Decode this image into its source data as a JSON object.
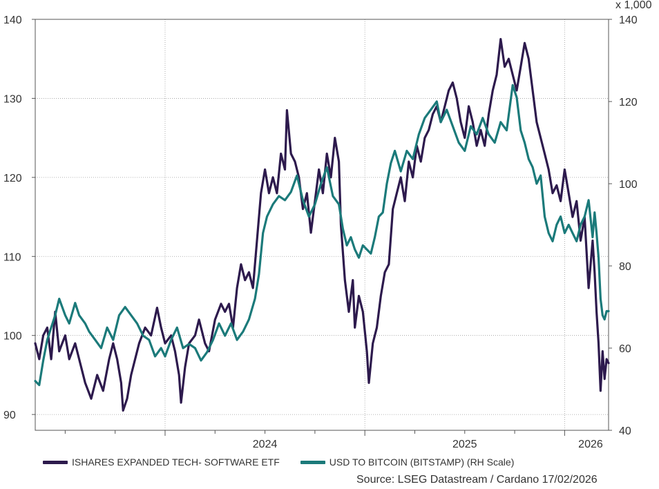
{
  "chart_data": {
    "type": "line",
    "title": "",
    "x_labels": [
      "2024",
      "2025",
      "2026"
    ],
    "x_range": [
      2023.35,
      2026.22
    ],
    "y_left": {
      "ticks": [
        90,
        100,
        110,
        120,
        130,
        140
      ],
      "range": [
        88,
        140
      ]
    },
    "y_right": {
      "ticks": [
        40,
        60,
        80,
        100,
        120,
        140
      ],
      "range": [
        40,
        140
      ],
      "unit_label": "x 1,000"
    },
    "grid": true,
    "legend_position": "bottom",
    "series": [
      {
        "name": "ISHARES EXPANDED TECH- SOFTWARE ETF",
        "axis": "left",
        "color": "#2d1a4d",
        "points": [
          [
            2023.35,
            99
          ],
          [
            2023.37,
            97
          ],
          [
            2023.39,
            100
          ],
          [
            2023.41,
            101
          ],
          [
            2023.43,
            97
          ],
          [
            2023.45,
            103
          ],
          [
            2023.47,
            98
          ],
          [
            2023.5,
            100
          ],
          [
            2023.52,
            97
          ],
          [
            2023.55,
            99
          ],
          [
            2023.57,
            97
          ],
          [
            2023.6,
            94
          ],
          [
            2023.63,
            92
          ],
          [
            2023.66,
            95
          ],
          [
            2023.69,
            93
          ],
          [
            2023.72,
            97
          ],
          [
            2023.74,
            99
          ],
          [
            2023.76,
            97
          ],
          [
            2023.78,
            94
          ],
          [
            2023.79,
            90.5
          ],
          [
            2023.81,
            92
          ],
          [
            2023.83,
            95
          ],
          [
            2023.85,
            97
          ],
          [
            2023.87,
            99
          ],
          [
            2023.9,
            101
          ],
          [
            2023.93,
            100
          ],
          [
            2023.96,
            103.5
          ],
          [
            2023.98,
            101
          ],
          [
            2024.0,
            99
          ],
          [
            2024.03,
            100
          ],
          [
            2024.05,
            98
          ],
          [
            2024.07,
            95
          ],
          [
            2024.08,
            91.5
          ],
          [
            2024.1,
            96
          ],
          [
            2024.12,
            99
          ],
          [
            2024.15,
            100
          ],
          [
            2024.17,
            102
          ],
          [
            2024.2,
            99
          ],
          [
            2024.22,
            98
          ],
          [
            2024.25,
            102
          ],
          [
            2024.28,
            104
          ],
          [
            2024.3,
            103
          ],
          [
            2024.32,
            104
          ],
          [
            2024.34,
            101
          ],
          [
            2024.36,
            106
          ],
          [
            2024.38,
            109
          ],
          [
            2024.4,
            107
          ],
          [
            2024.42,
            108
          ],
          [
            2024.44,
            106
          ],
          [
            2024.46,
            112
          ],
          [
            2024.48,
            118
          ],
          [
            2024.5,
            121
          ],
          [
            2024.52,
            118
          ],
          [
            2024.54,
            120
          ],
          [
            2024.56,
            118
          ],
          [
            2024.58,
            123
          ],
          [
            2024.6,
            121
          ],
          [
            2024.61,
            128.5
          ],
          [
            2024.63,
            123
          ],
          [
            2024.65,
            122
          ],
          [
            2024.67,
            120
          ],
          [
            2024.69,
            116
          ],
          [
            2024.71,
            118
          ],
          [
            2024.73,
            113
          ],
          [
            2024.75,
            117
          ],
          [
            2024.77,
            121
          ],
          [
            2024.79,
            118
          ],
          [
            2024.81,
            123
          ],
          [
            2024.83,
            120
          ],
          [
            2024.85,
            125
          ],
          [
            2024.87,
            122
          ],
          [
            2024.88,
            114
          ],
          [
            2024.9,
            107
          ],
          [
            2024.92,
            103
          ],
          [
            2024.94,
            107
          ],
          [
            2024.95,
            101
          ],
          [
            2024.97,
            105
          ],
          [
            2024.99,
            103
          ],
          [
            2025.01,
            98
          ],
          [
            2025.02,
            94
          ],
          [
            2025.04,
            99
          ],
          [
            2025.06,
            101
          ],
          [
            2025.08,
            105
          ],
          [
            2025.1,
            108
          ],
          [
            2025.12,
            109
          ],
          [
            2025.14,
            116
          ],
          [
            2025.16,
            118
          ],
          [
            2025.18,
            120
          ],
          [
            2025.2,
            117
          ],
          [
            2025.22,
            122
          ],
          [
            2025.24,
            120
          ],
          [
            2025.26,
            124
          ],
          [
            2025.28,
            122
          ],
          [
            2025.3,
            125
          ],
          [
            2025.32,
            126
          ],
          [
            2025.34,
            128
          ],
          [
            2025.36,
            129
          ],
          [
            2025.38,
            127
          ],
          [
            2025.4,
            129
          ],
          [
            2025.42,
            131
          ],
          [
            2025.44,
            132
          ],
          [
            2025.46,
            130
          ],
          [
            2025.48,
            127
          ],
          [
            2025.5,
            125
          ],
          [
            2025.52,
            129
          ],
          [
            2025.54,
            127
          ],
          [
            2025.56,
            124
          ],
          [
            2025.58,
            126
          ],
          [
            2025.6,
            124
          ],
          [
            2025.62,
            128
          ],
          [
            2025.64,
            131
          ],
          [
            2025.66,
            133
          ],
          [
            2025.68,
            137.5
          ],
          [
            2025.7,
            134
          ],
          [
            2025.72,
            135
          ],
          [
            2025.74,
            133
          ],
          [
            2025.76,
            131
          ],
          [
            2025.78,
            134
          ],
          [
            2025.8,
            137
          ],
          [
            2025.82,
            135
          ],
          [
            2025.84,
            131
          ],
          [
            2025.86,
            127
          ],
          [
            2025.88,
            125
          ],
          [
            2025.9,
            123
          ],
          [
            2025.92,
            121
          ],
          [
            2025.94,
            118
          ],
          [
            2025.96,
            119
          ],
          [
            2025.98,
            117
          ],
          [
            2026.0,
            121
          ],
          [
            2026.02,
            118
          ],
          [
            2026.04,
            115
          ],
          [
            2026.06,
            117
          ],
          [
            2026.08,
            112
          ],
          [
            2026.1,
            115
          ],
          [
            2026.12,
            106
          ],
          [
            2026.14,
            112
          ],
          [
            2026.15,
            108
          ],
          [
            2026.16,
            103
          ],
          [
            2026.17,
            99
          ],
          [
            2026.18,
            93
          ],
          [
            2026.19,
            98
          ],
          [
            2026.2,
            94.5
          ],
          [
            2026.21,
            97
          ],
          [
            2026.22,
            96.5
          ]
        ]
      },
      {
        "name": "USD TO BITCOIN (BITSTAMP) (RH Scale)",
        "axis": "right",
        "color": "#1b7a7a",
        "points": [
          [
            2023.35,
            52
          ],
          [
            2023.37,
            51
          ],
          [
            2023.39,
            57
          ],
          [
            2023.41,
            62
          ],
          [
            2023.43,
            65
          ],
          [
            2023.45,
            68
          ],
          [
            2023.47,
            72
          ],
          [
            2023.5,
            68
          ],
          [
            2023.52,
            66
          ],
          [
            2023.55,
            71
          ],
          [
            2023.57,
            68
          ],
          [
            2023.6,
            66
          ],
          [
            2023.62,
            64
          ],
          [
            2023.65,
            62
          ],
          [
            2023.68,
            60
          ],
          [
            2023.71,
            65
          ],
          [
            2023.74,
            62
          ],
          [
            2023.77,
            68
          ],
          [
            2023.8,
            70
          ],
          [
            2023.83,
            68
          ],
          [
            2023.86,
            66
          ],
          [
            2023.89,
            63
          ],
          [
            2023.92,
            62
          ],
          [
            2023.95,
            58
          ],
          [
            2023.98,
            60
          ],
          [
            2024.0,
            58
          ],
          [
            2024.03,
            62
          ],
          [
            2024.06,
            65
          ],
          [
            2024.09,
            60
          ],
          [
            2024.12,
            61
          ],
          [
            2024.15,
            60
          ],
          [
            2024.18,
            57
          ],
          [
            2024.21,
            59
          ],
          [
            2024.24,
            62
          ],
          [
            2024.27,
            66
          ],
          [
            2024.3,
            63
          ],
          [
            2024.33,
            66
          ],
          [
            2024.36,
            62
          ],
          [
            2024.39,
            64
          ],
          [
            2024.42,
            67
          ],
          [
            2024.45,
            72
          ],
          [
            2024.47,
            78
          ],
          [
            2024.49,
            88
          ],
          [
            2024.51,
            92
          ],
          [
            2024.54,
            95
          ],
          [
            2024.57,
            97
          ],
          [
            2024.6,
            96
          ],
          [
            2024.63,
            98
          ],
          [
            2024.66,
            102
          ],
          [
            2024.69,
            96
          ],
          [
            2024.72,
            92
          ],
          [
            2024.75,
            95
          ],
          [
            2024.78,
            100
          ],
          [
            2024.81,
            104
          ],
          [
            2024.84,
            97
          ],
          [
            2024.87,
            95
          ],
          [
            2024.89,
            89
          ],
          [
            2024.91,
            85
          ],
          [
            2024.93,
            87
          ],
          [
            2024.95,
            84
          ],
          [
            2024.97,
            82
          ],
          [
            2024.99,
            85
          ],
          [
            2025.01,
            84
          ],
          [
            2025.03,
            83
          ],
          [
            2025.05,
            87
          ],
          [
            2025.07,
            92
          ],
          [
            2025.09,
            93
          ],
          [
            2025.11,
            100
          ],
          [
            2025.13,
            105
          ],
          [
            2025.15,
            108
          ],
          [
            2025.18,
            103
          ],
          [
            2025.21,
            108
          ],
          [
            2025.24,
            106
          ],
          [
            2025.27,
            112
          ],
          [
            2025.3,
            116
          ],
          [
            2025.33,
            118
          ],
          [
            2025.36,
            120
          ],
          [
            2025.38,
            115
          ],
          [
            2025.41,
            118
          ],
          [
            2025.44,
            114
          ],
          [
            2025.47,
            110
          ],
          [
            2025.5,
            108
          ],
          [
            2025.53,
            114
          ],
          [
            2025.56,
            112
          ],
          [
            2025.59,
            116
          ],
          [
            2025.62,
            112
          ],
          [
            2025.65,
            110
          ],
          [
            2025.68,
            115
          ],
          [
            2025.71,
            113
          ],
          [
            2025.74,
            124
          ],
          [
            2025.76,
            121
          ],
          [
            2025.78,
            113
          ],
          [
            2025.8,
            110
          ],
          [
            2025.82,
            106
          ],
          [
            2025.84,
            104
          ],
          [
            2025.86,
            100
          ],
          [
            2025.88,
            102
          ],
          [
            2025.9,
            92
          ],
          [
            2025.92,
            88
          ],
          [
            2025.94,
            86
          ],
          [
            2025.96,
            90
          ],
          [
            2025.98,
            92
          ],
          [
            2026.0,
            88
          ],
          [
            2026.02,
            90
          ],
          [
            2026.04,
            88
          ],
          [
            2026.06,
            86
          ],
          [
            2026.08,
            90
          ],
          [
            2026.1,
            92
          ],
          [
            2026.12,
            96
          ],
          [
            2026.14,
            87
          ],
          [
            2026.15,
            93
          ],
          [
            2026.16,
            88
          ],
          [
            2026.17,
            82
          ],
          [
            2026.18,
            72
          ],
          [
            2026.19,
            68
          ],
          [
            2026.2,
            67
          ],
          [
            2026.21,
            69
          ],
          [
            2026.22,
            69
          ]
        ]
      }
    ]
  },
  "legend": [
    {
      "label": "ISHARES EXPANDED TECH- SOFTWARE ETF",
      "color": "#2d1a4d"
    },
    {
      "label": "USD TO BITCOIN (BITSTAMP) (RH Scale)",
      "color": "#1b7a7a"
    }
  ],
  "source": "Source: LSEG Datastream / Cardano  17/02/2026"
}
